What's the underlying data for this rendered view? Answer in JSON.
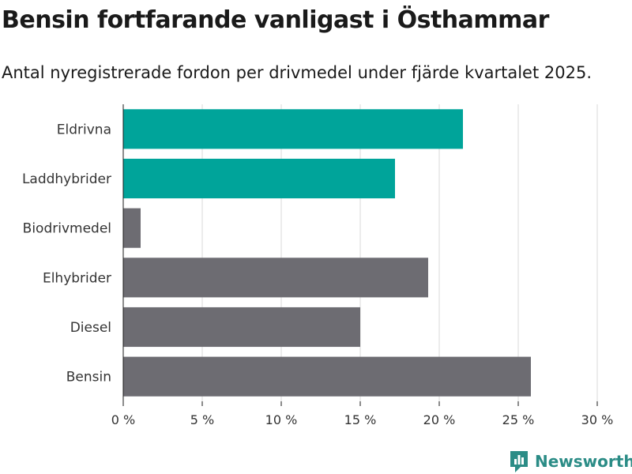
{
  "title": "Bensin fortfarande vanligast i Östhammar",
  "subtitle": "Antal nyregistrerade fordon per drivmedel under fjärde kvartalet 2025.",
  "brand": "Newsworthy",
  "colors": {
    "highlight": "#00a49a",
    "default": "#6d6c72",
    "grid": "#d9d9d9",
    "axis": "#1a1a1a"
  },
  "chart_data": {
    "type": "bar",
    "orientation": "horizontal",
    "categories": [
      "Eldrivna",
      "Laddhybrider",
      "Biodrivmedel",
      "Elhybrider",
      "Diesel",
      "Bensin"
    ],
    "values": [
      21.5,
      17.2,
      1.1,
      19.3,
      15.0,
      25.8
    ],
    "highlight": [
      true,
      true,
      false,
      false,
      false,
      false
    ],
    "xlim": [
      0,
      30
    ],
    "xticks": [
      0,
      5,
      10,
      15,
      20,
      25,
      30
    ],
    "tick_suffix": " %",
    "xlabel": "",
    "ylabel": "",
    "grid": true
  }
}
